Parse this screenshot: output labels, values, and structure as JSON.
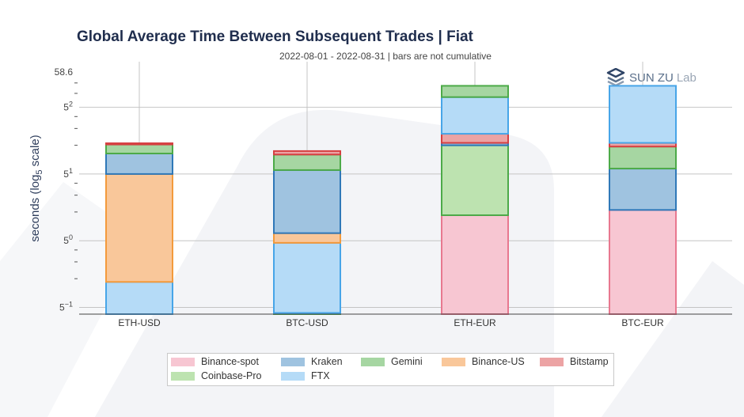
{
  "title": "Global Average Time Between Subsequent Trades | Fiat",
  "subtitle": "2022-08-01 - 2022-08-31 | bars are not cumulative",
  "logo": {
    "name": "SUN ZU",
    "suffix": "Lab"
  },
  "colors": {
    "Binance-spot": {
      "fill": "#f7c6d2",
      "stroke": "#e8788f"
    },
    "Kraken": {
      "fill": "#9fc3e0",
      "stroke": "#2f78b8"
    },
    "Gemini": {
      "fill": "#a6d6a2",
      "stroke": "#4caa48"
    },
    "Binance-US": {
      "fill": "#f9c79a",
      "stroke": "#f39a3c"
    },
    "Bitstamp": {
      "fill": "#eca3a4",
      "stroke": "#d63f41"
    },
    "Coinbase-Pro": {
      "fill": "#bde3b0",
      "stroke": "#4caa48"
    },
    "FTX": {
      "fill": "#b5dbf7",
      "stroke": "#47a5e8"
    }
  },
  "chart_data": {
    "type": "bar",
    "ylabel_parts": [
      "seconds (log",
      "5",
      " scale)"
    ],
    "yscale": "log5",
    "ylim": [
      0.17,
      58.6
    ],
    "yticks": [
      {
        "value": 0.2,
        "label": "5",
        "exp": "−1"
      },
      {
        "value": 1,
        "label": "5",
        "exp": "0"
      },
      {
        "value": 5,
        "label": "5",
        "exp": "1"
      },
      {
        "value": 25,
        "label": "5",
        "exp": "2"
      },
      {
        "value": 58.6,
        "label": "58.6",
        "exp": ""
      }
    ],
    "minor_ticks": [
      0.4,
      0.6,
      0.8,
      2,
      3,
      4,
      10,
      15,
      20,
      35,
      45
    ],
    "grid": true,
    "categories": [
      "ETH-USD",
      "BTC-USD",
      "ETH-EUR",
      "BTC-EUR"
    ],
    "legend_placement": "bottom",
    "legend_rows": [
      [
        "Binance-spot",
        "Kraken",
        "Gemini",
        "Binance-US",
        "Bitstamp"
      ],
      [
        "Coinbase-Pro",
        "FTX"
      ]
    ],
    "stacks": [
      [
        {
          "name": "FTX",
          "from": 0.17,
          "to": 0.37
        },
        {
          "name": "Binance-US",
          "from": 0.37,
          "to": 5.0
        },
        {
          "name": "Kraken",
          "from": 5.0,
          "to": 8.2
        },
        {
          "name": "Gemini",
          "from": 8.2,
          "to": 10.2
        },
        {
          "name": "Bitstamp",
          "from": 10.2,
          "to": 10.5
        }
      ],
      [
        {
          "name": "Coinbase-Pro",
          "from": 0.17,
          "to": 0.175
        },
        {
          "name": "FTX",
          "from": 0.175,
          "to": 0.95
        },
        {
          "name": "Binance-US",
          "from": 0.95,
          "to": 1.2
        },
        {
          "name": "Kraken",
          "from": 1.2,
          "to": 5.5
        },
        {
          "name": "Gemini",
          "from": 5.5,
          "to": 8.0
        },
        {
          "name": "Bitstamp",
          "from": 8.0,
          "to": 8.7
        }
      ],
      [
        {
          "name": "Binance-spot",
          "from": 0.17,
          "to": 1.85
        },
        {
          "name": "Coinbase-Pro",
          "from": 1.85,
          "to": 10.0
        },
        {
          "name": "Kraken",
          "from": 10.0,
          "to": 10.6
        },
        {
          "name": "Bitstamp",
          "from": 10.6,
          "to": 13.2
        },
        {
          "name": "FTX",
          "from": 13.2,
          "to": 32.0
        },
        {
          "name": "Gemini",
          "from": 32.0,
          "to": 42.0
        }
      ],
      [
        {
          "name": "Binance-spot",
          "from": 0.17,
          "to": 2.1
        },
        {
          "name": "Kraken",
          "from": 2.1,
          "to": 5.7
        },
        {
          "name": "Gemini",
          "from": 5.7,
          "to": 9.7
        },
        {
          "name": "Bitstamp",
          "from": 9.7,
          "to": 10.6
        },
        {
          "name": "FTX",
          "from": 10.6,
          "to": 42.0
        }
      ]
    ]
  }
}
